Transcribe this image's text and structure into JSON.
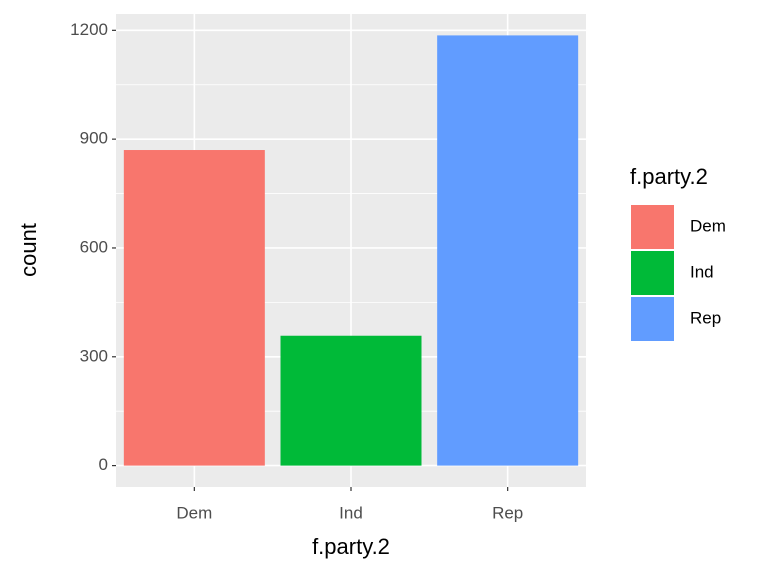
{
  "chart_data": {
    "type": "bar",
    "categories": [
      "Dem",
      "Ind",
      "Rep"
    ],
    "values": [
      870,
      358,
      1186
    ],
    "colors": [
      "#f8766d",
      "#00ba38",
      "#619cff"
    ],
    "x_label": "f.party.2",
    "y_label": "count",
    "legend_title": "f.party.2",
    "legend": "right",
    "ylim": [
      -59,
      1245
    ],
    "yticks": [
      0,
      300,
      600,
      900,
      1200
    ],
    "y_minor_ticks": [
      150,
      450,
      750,
      1050
    ],
    "grid": true
  }
}
